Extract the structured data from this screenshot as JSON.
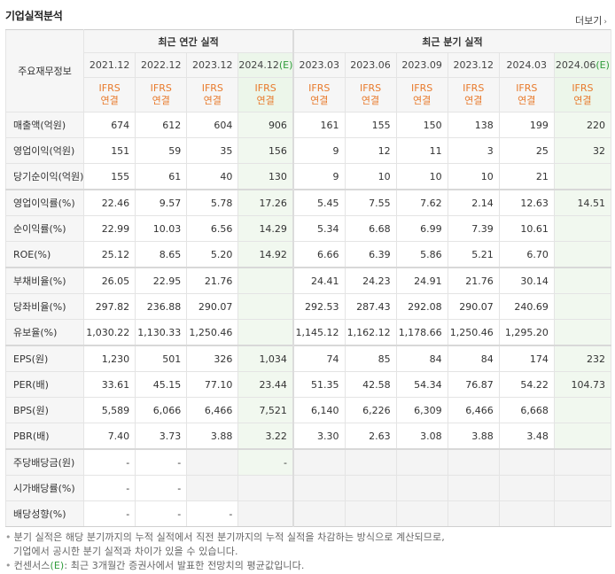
{
  "header": {
    "title": "기업실적분석",
    "more_label": "더보기"
  },
  "table": {
    "row_header_label": "주요재무정보",
    "annual_group_label": "최근 연간 실적",
    "quarter_group_label": "최근 분기 실적",
    "annual_periods": [
      "2021.12",
      "2022.12",
      "2023.12",
      "2024.12"
    ],
    "annual_est_suffix": "(E)",
    "quarter_periods": [
      "2023.03",
      "2023.06",
      "2023.09",
      "2023.12",
      "2024.03",
      "2024.06"
    ],
    "quarter_est_suffix": "(E)",
    "ifrs_top": "IFRS",
    "ifrs_bottom": "연결",
    "rows": [
      {
        "label": "매출액(억원)",
        "values": [
          "674",
          "612",
          "604",
          "906",
          "161",
          "155",
          "150",
          "138",
          "199",
          "220"
        ]
      },
      {
        "label": "영업이익(억원)",
        "values": [
          "151",
          "59",
          "35",
          "156",
          "9",
          "12",
          "11",
          "3",
          "25",
          "32"
        ]
      },
      {
        "label": "당기순이익(억원)",
        "values": [
          "155",
          "61",
          "40",
          "130",
          "9",
          "10",
          "10",
          "10",
          "21",
          ""
        ]
      },
      {
        "label": "영업이익률(%)",
        "values": [
          "22.46",
          "9.57",
          "5.78",
          "17.26",
          "5.45",
          "7.55",
          "7.62",
          "2.14",
          "12.63",
          "14.51"
        ]
      },
      {
        "label": "순이익률(%)",
        "values": [
          "22.99",
          "10.03",
          "6.56",
          "14.29",
          "5.34",
          "6.68",
          "6.99",
          "7.39",
          "10.61",
          ""
        ]
      },
      {
        "label": "ROE(%)",
        "values": [
          "25.12",
          "8.65",
          "5.20",
          "14.92",
          "6.66",
          "6.39",
          "5.86",
          "5.21",
          "6.70",
          ""
        ]
      },
      {
        "label": "부채비율(%)",
        "values": [
          "26.05",
          "22.95",
          "21.76",
          "",
          "24.41",
          "24.23",
          "24.91",
          "21.76",
          "30.14",
          ""
        ]
      },
      {
        "label": "당좌비율(%)",
        "values": [
          "297.82",
          "236.88",
          "290.07",
          "",
          "292.53",
          "287.43",
          "292.08",
          "290.07",
          "240.69",
          ""
        ]
      },
      {
        "label": "유보율(%)",
        "values": [
          "1,030.22",
          "1,130.33",
          "1,250.46",
          "",
          "1,145.12",
          "1,162.12",
          "1,178.66",
          "1,250.46",
          "1,295.20",
          ""
        ]
      },
      {
        "label": "EPS(원)",
        "values": [
          "1,230",
          "501",
          "326",
          "1,034",
          "74",
          "85",
          "84",
          "84",
          "174",
          "232"
        ]
      },
      {
        "label": "PER(배)",
        "values": [
          "33.61",
          "45.15",
          "77.10",
          "23.44",
          "51.35",
          "42.58",
          "54.34",
          "76.87",
          "54.22",
          "104.73"
        ]
      },
      {
        "label": "BPS(원)",
        "values": [
          "5,589",
          "6,066",
          "6,466",
          "7,521",
          "6,140",
          "6,226",
          "6,309",
          "6,466",
          "6,668",
          ""
        ]
      },
      {
        "label": "PBR(배)",
        "values": [
          "7.40",
          "3.73",
          "3.88",
          "3.22",
          "3.30",
          "2.63",
          "3.08",
          "3.88",
          "3.48",
          ""
        ]
      },
      {
        "label": "주당배당금(원)",
        "values": [
          "-",
          "-",
          "",
          "-",
          "",
          "",
          "",
          "",
          "",
          ""
        ]
      },
      {
        "label": "시가배당률(%)",
        "values": [
          "-",
          "-",
          "",
          "",
          "",
          "",
          "",
          "",
          "",
          ""
        ]
      },
      {
        "label": "배당성향(%)",
        "values": [
          "-",
          "-",
          "-",
          "",
          "",
          "",
          "",
          "",
          "",
          ""
        ]
      }
    ]
  },
  "notes": {
    "line1": "분기 실적은 해당 분기까지의 누적 실적에서 직전 분기까지의 누적 실적을 차감하는 방식으로 계산되므로,",
    "line2": "기업에서 공시한 분기 실적과 차이가 있을 수 있습니다.",
    "line3_prefix": "컨센서스",
    "line3_mark": "(E)",
    "line3_suffix": ": 최근 3개월간 증권사에서 발표한 전망치의 평균값입니다."
  }
}
